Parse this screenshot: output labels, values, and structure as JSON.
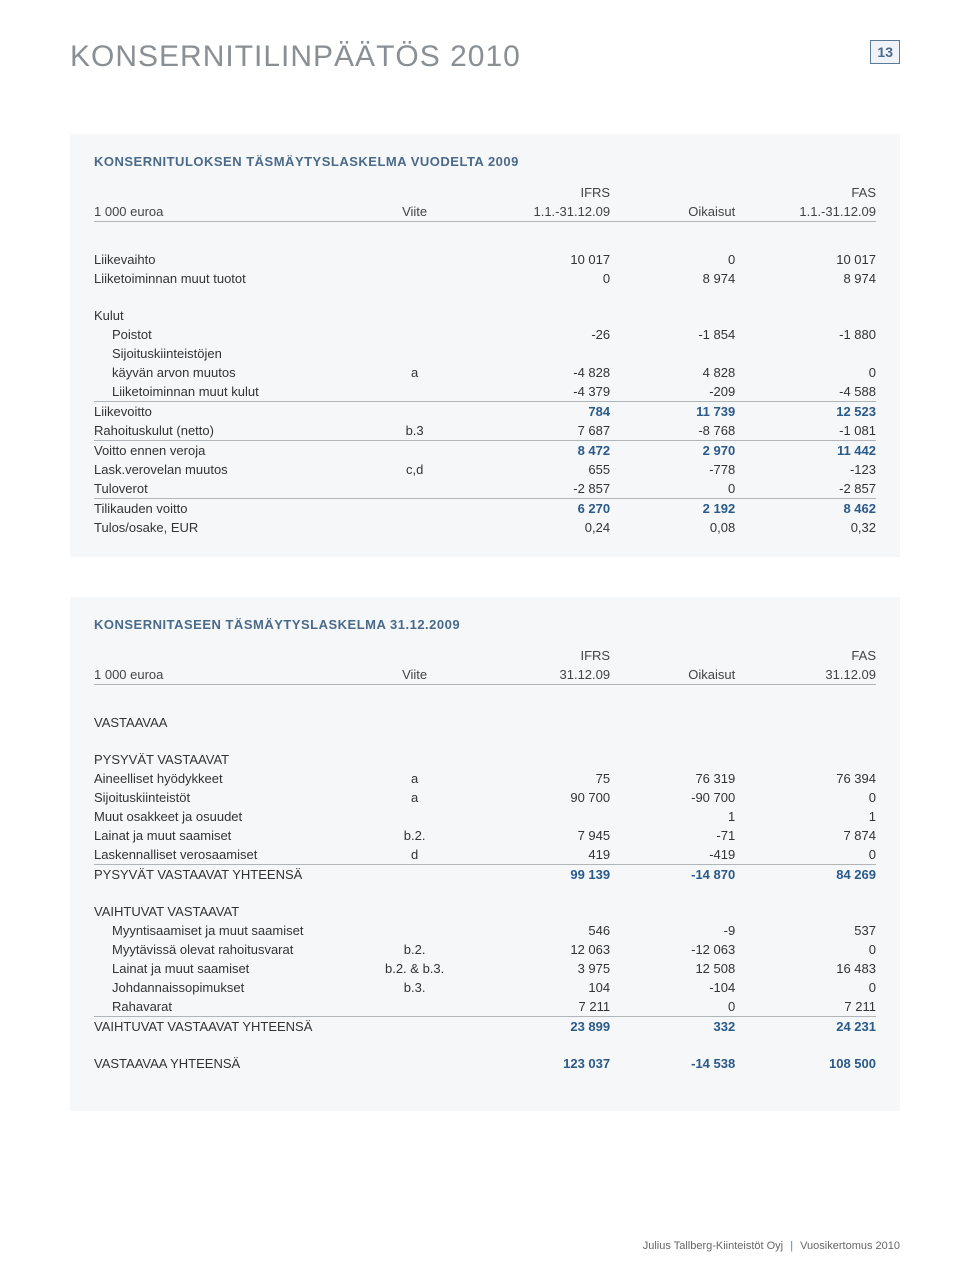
{
  "page": {
    "title": "KONSERNITILINPÄÄTÖS 2010",
    "number": "13",
    "footer_company": "Julius Tallberg-Kiinteistöt Oyj",
    "footer_doc": "Vuosikertomus 2010"
  },
  "table1": {
    "title": "KONSERNITULOKSEN TÄSMÄYTYSLASKELMA VUODELTA 2009",
    "head": {
      "super_col1": "IFRS",
      "super_col3": "FAS",
      "c0": "1 000 euroa",
      "cviite": "Viite",
      "c1": "1.1.-31.12.09",
      "c2": "Oikaisut",
      "c3": "1.1.-31.12.09"
    },
    "rows": [
      {
        "label": "Liikevaihto",
        "viite": "",
        "c1": "10 017",
        "c2": "0",
        "c3": "10 017"
      },
      {
        "label": "Liiketoiminnan muut tuotot",
        "viite": "",
        "c1": "0",
        "c2": "8 974",
        "c3": "8 974"
      }
    ],
    "kulut_label": "Kulut",
    "kulut_rows": [
      {
        "label": "Poistot",
        "viite": "",
        "c1": "-26",
        "c2": "-1 854",
        "c3": "-1 880"
      },
      {
        "label": "Sijoituskiinteistöjen",
        "viite": "",
        "c1": "",
        "c2": "",
        "c3": ""
      },
      {
        "label": "käyvän arvon muutos",
        "viite": "a",
        "c1": "-4 828",
        "c2": "4 828",
        "c3": "0",
        "indent": true
      },
      {
        "label": "Liiketoiminnan muut kulut",
        "viite": "",
        "c1": "-4 379",
        "c2": "-209",
        "c3": "-4 588"
      }
    ],
    "sub1": [
      {
        "label": "Liikevoitto",
        "viite": "",
        "c1": "784",
        "c2": "11 739",
        "c3": "12 523",
        "bold": true
      },
      {
        "label": "Rahoituskulut (netto)",
        "viite": "b.3",
        "c1": "7 687",
        "c2": "-8 768",
        "c3": "-1 081"
      }
    ],
    "sub2": [
      {
        "label": "Voitto ennen veroja",
        "viite": "",
        "c1": "8 472",
        "c2": "2 970",
        "c3": "11 442",
        "bold": true
      },
      {
        "label": "Lask.verovelan muutos",
        "viite": "c,d",
        "c1": "655",
        "c2": "-778",
        "c3": "-123"
      },
      {
        "label": "Tuloverot",
        "viite": "",
        "c1": "-2 857",
        "c2": "0",
        "c3": "-2 857"
      }
    ],
    "sub3": [
      {
        "label": "Tilikauden voitto",
        "viite": "",
        "c1": "6 270",
        "c2": "2 192",
        "c3": "8 462",
        "bold": true
      },
      {
        "label": "Tulos/osake, EUR",
        "viite": "",
        "c1": "0,24",
        "c2": "0,08",
        "c3": "0,32"
      }
    ]
  },
  "table2": {
    "title": "KONSERNITASEEN TÄSMÄYTYSLASKELMA 31.12.2009",
    "head": {
      "super_col1": "IFRS",
      "super_col3": "FAS",
      "c0": "1 000 euroa",
      "cviite": "Viite",
      "c1": "31.12.09",
      "c2": "Oikaisut",
      "c3": "31.12.09"
    },
    "vastaavaa_label": "VASTAAVAA",
    "section1_label": "PYSYVÄT VASTAAVAT",
    "section1_rows": [
      {
        "label": "Aineelliset hyödykkeet",
        "viite": "a",
        "c1": "75",
        "c2": "76 319",
        "c3": "76 394"
      },
      {
        "label": "Sijoituskiinteistöt",
        "viite": "a",
        "c1": "90 700",
        "c2": "-90 700",
        "c3": "0"
      },
      {
        "label": "Muut osakkeet ja osuudet",
        "viite": "",
        "c1": "",
        "c2": "1",
        "c3": "1"
      },
      {
        "label": "Lainat ja muut saamiset",
        "viite": "b.2.",
        "c1": "7 945",
        "c2": "-71",
        "c3": "7 874"
      },
      {
        "label": "Laskennalliset verosaamiset",
        "viite": "d",
        "c1": "419",
        "c2": "-419",
        "c3": "0"
      }
    ],
    "section1_total": {
      "label": "PYSYVÄT VASTAAVAT YHTEENSÄ",
      "c1": "99 139",
      "c2": "-14 870",
      "c3": "84 269"
    },
    "section2_label": "VAIHTUVAT VASTAAVAT",
    "section2_rows": [
      {
        "label": "Myyntisaamiset ja muut saamiset",
        "viite": "",
        "c1": "546",
        "c2": "-9",
        "c3": "537",
        "indent": true
      },
      {
        "label": "Myytävissä olevat rahoitusvarat",
        "viite": "b.2.",
        "c1": "12 063",
        "c2": "-12 063",
        "c3": "0",
        "indent": true
      },
      {
        "label": "Lainat ja muut saamiset",
        "viite": "b.2. & b.3.",
        "c1": "3 975",
        "c2": "12 508",
        "c3": "16 483",
        "indent": true
      },
      {
        "label": "Johdannaissopimukset",
        "viite": "b.3.",
        "c1": "104",
        "c2": "-104",
        "c3": "0",
        "indent": true
      },
      {
        "label": "Rahavarat",
        "viite": "",
        "c1": "7 211",
        "c2": "0",
        "c3": "7 211",
        "indent": true
      }
    ],
    "section2_total": {
      "label": "VAIHTUVAT VASTAAVAT YHTEENSÄ",
      "c1": "23 899",
      "c2": "332",
      "c3": "24 231"
    },
    "grand_total": {
      "label": "VASTAAVAA YHTEENSÄ",
      "c1": "123 037",
      "c2": "-14 538",
      "c3": "108 500"
    }
  }
}
